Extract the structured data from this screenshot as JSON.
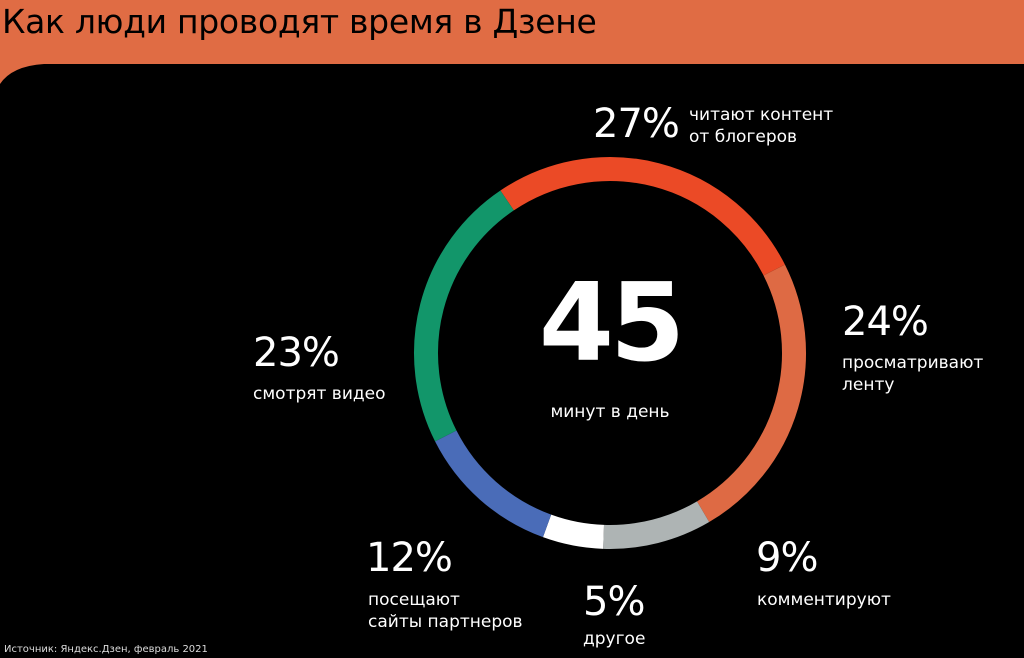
{
  "title": "Как люди проводят время в Дзене",
  "colors": {
    "header": "#E06C44",
    "background": "#000000",
    "text": "#FFFFFF"
  },
  "center": {
    "value": "45",
    "label": "минут в день"
  },
  "chart_data": {
    "type": "pie",
    "donut": true,
    "title": "Как люди проводят время в Дзене",
    "total_minutes_per_day": 45,
    "unit": "%",
    "slices": [
      {
        "pct_text": "27%",
        "value": 27,
        "label_lines": [
          "читают контент",
          "от блогеров"
        ],
        "color": "#EB4A26"
      },
      {
        "pct_text": "24%",
        "value": 24,
        "label_lines": [
          "просматривают",
          "ленту"
        ],
        "color": "#DE6A44"
      },
      {
        "pct_text": "9%",
        "value": 9,
        "label_lines": [
          "комментируют"
        ],
        "color": "#AEB4B4"
      },
      {
        "pct_text": "5%",
        "value": 5,
        "label_lines": [
          "другое"
        ],
        "color": "#FFFFFF"
      },
      {
        "pct_text": "12%",
        "value": 12,
        "label_lines": [
          "посещают",
          "сайты партнеров"
        ],
        "color": "#4A6CB8"
      },
      {
        "pct_text": "23%",
        "value": 23,
        "label_lines": [
          "смотрят видео"
        ],
        "color": "#12966A"
      }
    ]
  },
  "source": "Источник: Яндекс.Дзен, февраль 2021"
}
